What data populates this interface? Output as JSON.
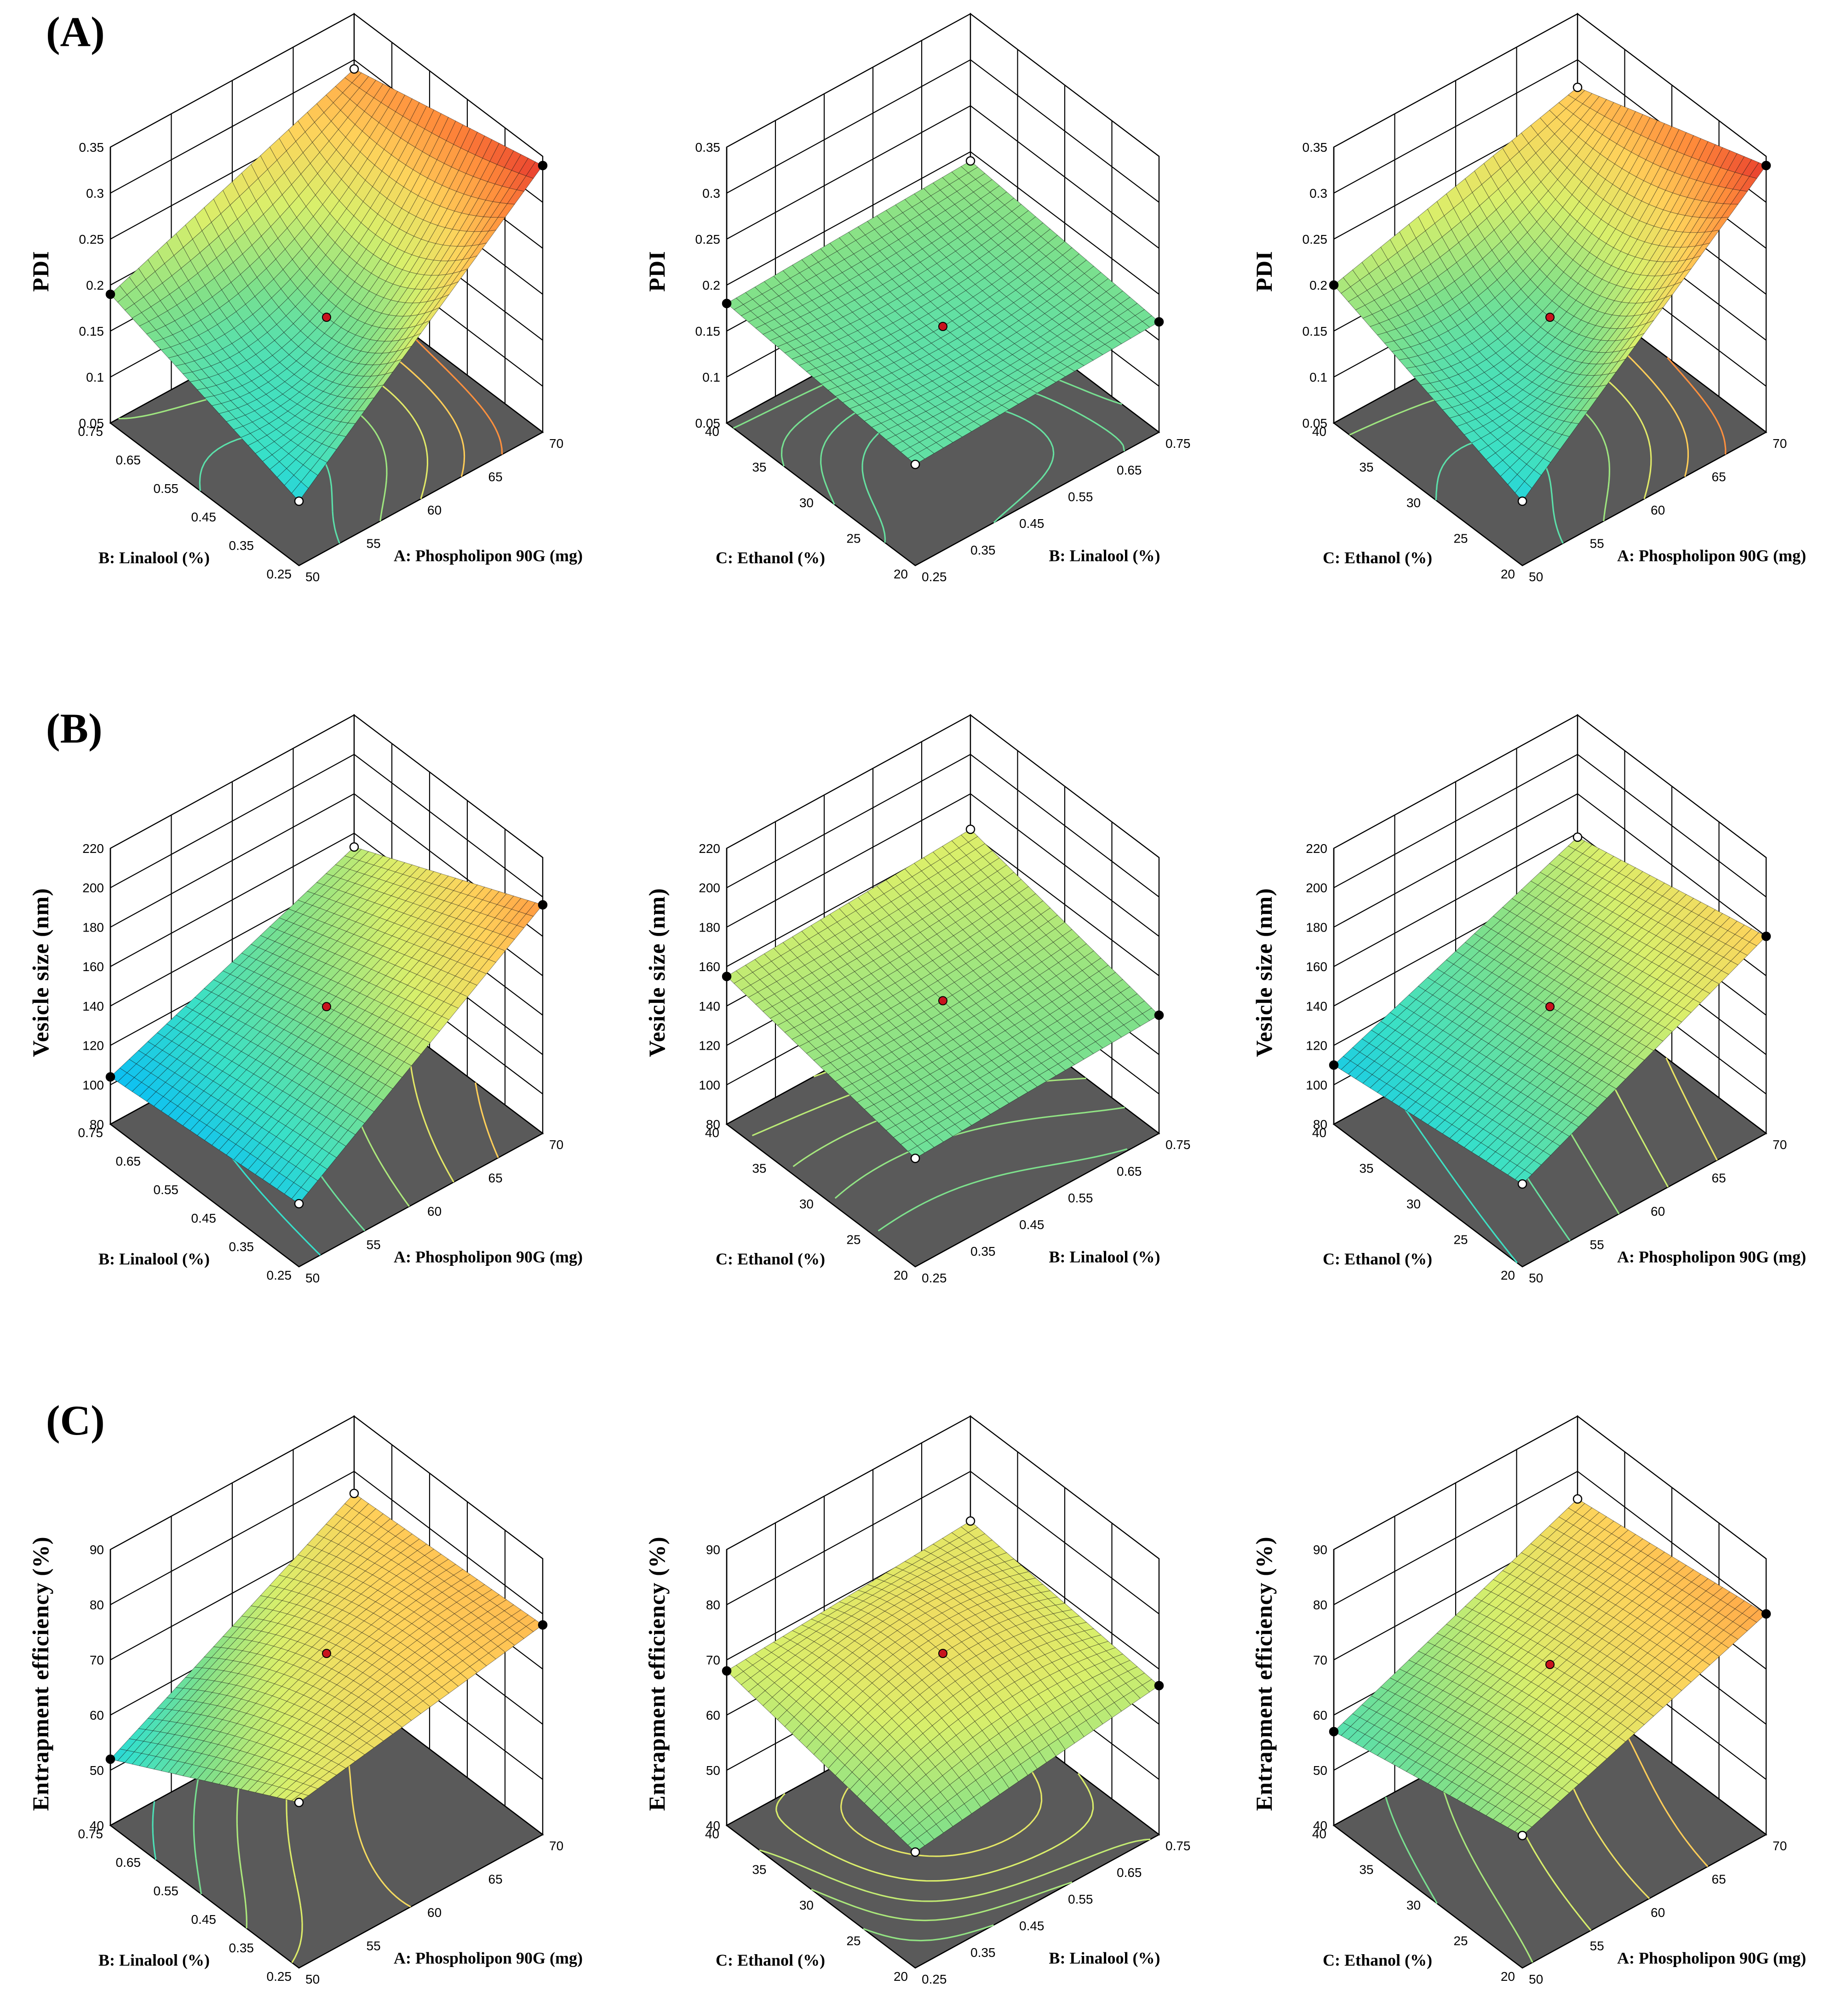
{
  "row_labels": [
    "(A)",
    "(B)",
    "(C)"
  ],
  "colors": {
    "floor": "#5a5a5a",
    "mesh": "#111111",
    "colormap": [
      "#1f3fff",
      "#00b7ff",
      "#38e0c8",
      "#7fe08a",
      "#d9ef6b",
      "#ffd15a",
      "#ff8a3a",
      "#e0202a"
    ]
  },
  "chart_data": [
    {
      "type": "surface3d",
      "row": 0,
      "col": 0,
      "response": "PDI",
      "zlabel": "PDI",
      "xlabel": "B: Linalool (%)",
      "ylabel": "A: Phospholipon 90G (mg)",
      "zticks": [
        "0.05",
        "0.1",
        "0.15",
        "0.2",
        "0.25",
        "0.3",
        "0.35"
      ],
      "zlim": [
        0.05,
        0.35
      ],
      "xticks": [
        "0.75",
        "0.65",
        "0.55",
        "0.45",
        "0.35",
        "0.25"
      ],
      "yticks": [
        "50",
        "55",
        "60",
        "65",
        "70"
      ],
      "corners": {
        "left": 0.19,
        "front": 0.12,
        "right": 0.34,
        "back": 0.29
      },
      "center": 0.17,
      "curv_u": 0.04,
      "curv_v": 0.05,
      "tilt": 0.05
    },
    {
      "type": "surface3d",
      "row": 0,
      "col": 1,
      "response": "PDI",
      "zlabel": "PDI",
      "xlabel": "C: Ethanol (%)",
      "ylabel": "B: Linalool (%)",
      "zticks": [
        "0.05",
        "0.1",
        "0.15",
        "0.2",
        "0.25",
        "0.3",
        "0.35"
      ],
      "zlim": [
        0.05,
        0.35
      ],
      "xticks": [
        "40",
        "35",
        "30",
        "25",
        "20"
      ],
      "yticks": [
        "0.25",
        "0.35",
        "0.45",
        "0.55",
        "0.65",
        "0.75"
      ],
      "corners": {
        "left": 0.18,
        "front": 0.16,
        "right": 0.17,
        "back": 0.19
      },
      "center": 0.16,
      "curv_u": 0.01,
      "curv_v": 0.01,
      "tilt": 0.0
    },
    {
      "type": "surface3d",
      "row": 0,
      "col": 2,
      "response": "PDI",
      "zlabel": "PDI",
      "xlabel": "C: Ethanol (%)",
      "ylabel": "A: Phospholipon 90G (mg)",
      "zticks": [
        "0.05",
        "0.1",
        "0.15",
        "0.2",
        "0.25",
        "0.3",
        "0.35"
      ],
      "zlim": [
        0.05,
        0.35
      ],
      "xticks": [
        "40",
        "35",
        "30",
        "25",
        "20"
      ],
      "yticks": [
        "50",
        "55",
        "60",
        "65",
        "70"
      ],
      "corners": {
        "left": 0.2,
        "front": 0.12,
        "right": 0.34,
        "back": 0.27
      },
      "center": 0.17,
      "curv_u": 0.06,
      "curv_v": 0.06,
      "tilt": 0.02
    },
    {
      "type": "surface3d",
      "row": 1,
      "col": 0,
      "response": "Vesicle size",
      "zlabel": "Vesicle size (nm)",
      "xlabel": "B: Linalool (%)",
      "ylabel": "A: Phospholipon 90G (mg)",
      "zticks": [
        "80",
        "100",
        "120",
        "140",
        "160",
        "180",
        "200",
        "220"
      ],
      "zlim": [
        80,
        220
      ],
      "xticks": [
        "0.75",
        "0.65",
        "0.55",
        "0.45",
        "0.35",
        "0.25"
      ],
      "yticks": [
        "50",
        "55",
        "60",
        "65",
        "70"
      ],
      "corners": {
        "left": 104,
        "front": 112,
        "right": 196,
        "back": 153
      },
      "center": 142,
      "curv_u": 6,
      "curv_v": 4,
      "tilt": 0
    },
    {
      "type": "surface3d",
      "row": 1,
      "col": 1,
      "response": "Vesicle size",
      "zlabel": "Vesicle size (nm)",
      "xlabel": "C: Ethanol (%)",
      "ylabel": "B: Linalool (%)",
      "zticks": [
        "80",
        "100",
        "120",
        "140",
        "160",
        "180",
        "200",
        "220"
      ],
      "zlim": [
        80,
        220
      ],
      "xticks": [
        "40",
        "35",
        "30",
        "25",
        "20"
      ],
      "yticks": [
        "0.25",
        "0.35",
        "0.45",
        "0.55",
        "0.65",
        "0.75"
      ],
      "corners": {
        "left": 155,
        "front": 135,
        "right": 140,
        "back": 162
      },
      "center": 145,
      "curv_u": 3,
      "curv_v": 3,
      "tilt": 0
    },
    {
      "type": "surface3d",
      "row": 1,
      "col": 2,
      "response": "Vesicle size",
      "zlabel": "Vesicle size (nm)",
      "xlabel": "C: Ethanol (%)",
      "ylabel": "A: Phospholipon 90G (mg)",
      "zticks": [
        "80",
        "100",
        "120",
        "140",
        "160",
        "180",
        "200",
        "220"
      ],
      "zlim": [
        80,
        220
      ],
      "xticks": [
        "40",
        "35",
        "30",
        "25",
        "20"
      ],
      "yticks": [
        "50",
        "55",
        "60",
        "65",
        "70"
      ],
      "corners": {
        "left": 110,
        "front": 122,
        "right": 180,
        "back": 158
      },
      "center": 142,
      "curv_u": 4,
      "curv_v": 4,
      "tilt": 0
    },
    {
      "type": "surface3d",
      "row": 2,
      "col": 0,
      "response": "Entrapment efficiency",
      "zlabel": "Entrapment efficiency (%)",
      "xlabel": "B: Linalool (%)",
      "ylabel": "A: Phospholipon 90G (mg)",
      "zticks": [
        "40",
        "50",
        "60",
        "70",
        "80",
        "90"
      ],
      "zlim": [
        40,
        90
      ],
      "xticks": [
        "0.75",
        "0.65",
        "0.55",
        "0.45",
        "0.35",
        "0.25"
      ],
      "yticks": [
        "50",
        "55",
        "60",
        "65",
        "70"
      ],
      "corners": {
        "left": 52,
        "front": 70,
        "right": 78,
        "back": 76
      },
      "center": 72,
      "curv_u": -3,
      "curv_v": -2,
      "tilt": 0
    },
    {
      "type": "surface3d",
      "row": 2,
      "col": 1,
      "response": "Entrapment efficiency",
      "zlabel": "Entrapment efficiency (%)",
      "xlabel": "C: Ethanol (%)",
      "ylabel": "B: Linalool (%)",
      "zticks": [
        "40",
        "50",
        "60",
        "70",
        "80",
        "90"
      ],
      "zlim": [
        40,
        90
      ],
      "xticks": [
        "40",
        "35",
        "30",
        "25",
        "20"
      ],
      "yticks": [
        "0.25",
        "0.35",
        "0.45",
        "0.55",
        "0.65",
        "0.75"
      ],
      "corners": {
        "left": 68,
        "front": 61,
        "right": 67,
        "back": 71
      },
      "center": 72,
      "curv_u": -4,
      "curv_v": -4,
      "tilt": 0
    },
    {
      "type": "surface3d",
      "row": 2,
      "col": 2,
      "response": "Entrapment efficiency",
      "zlabel": "Entrapment efficiency (%)",
      "xlabel": "C: Ethanol (%)",
      "ylabel": "A: Phospholipon 90G (mg)",
      "zticks": [
        "40",
        "50",
        "60",
        "70",
        "80",
        "90"
      ],
      "zlim": [
        40,
        90
      ],
      "xticks": [
        "40",
        "35",
        "30",
        "25",
        "20"
      ],
      "yticks": [
        "50",
        "55",
        "60",
        "65",
        "70"
      ],
      "corners": {
        "left": 57,
        "front": 64,
        "right": 80,
        "back": 75
      },
      "center": 70,
      "curv_u": -3,
      "curv_v": -2,
      "tilt": 0
    }
  ]
}
